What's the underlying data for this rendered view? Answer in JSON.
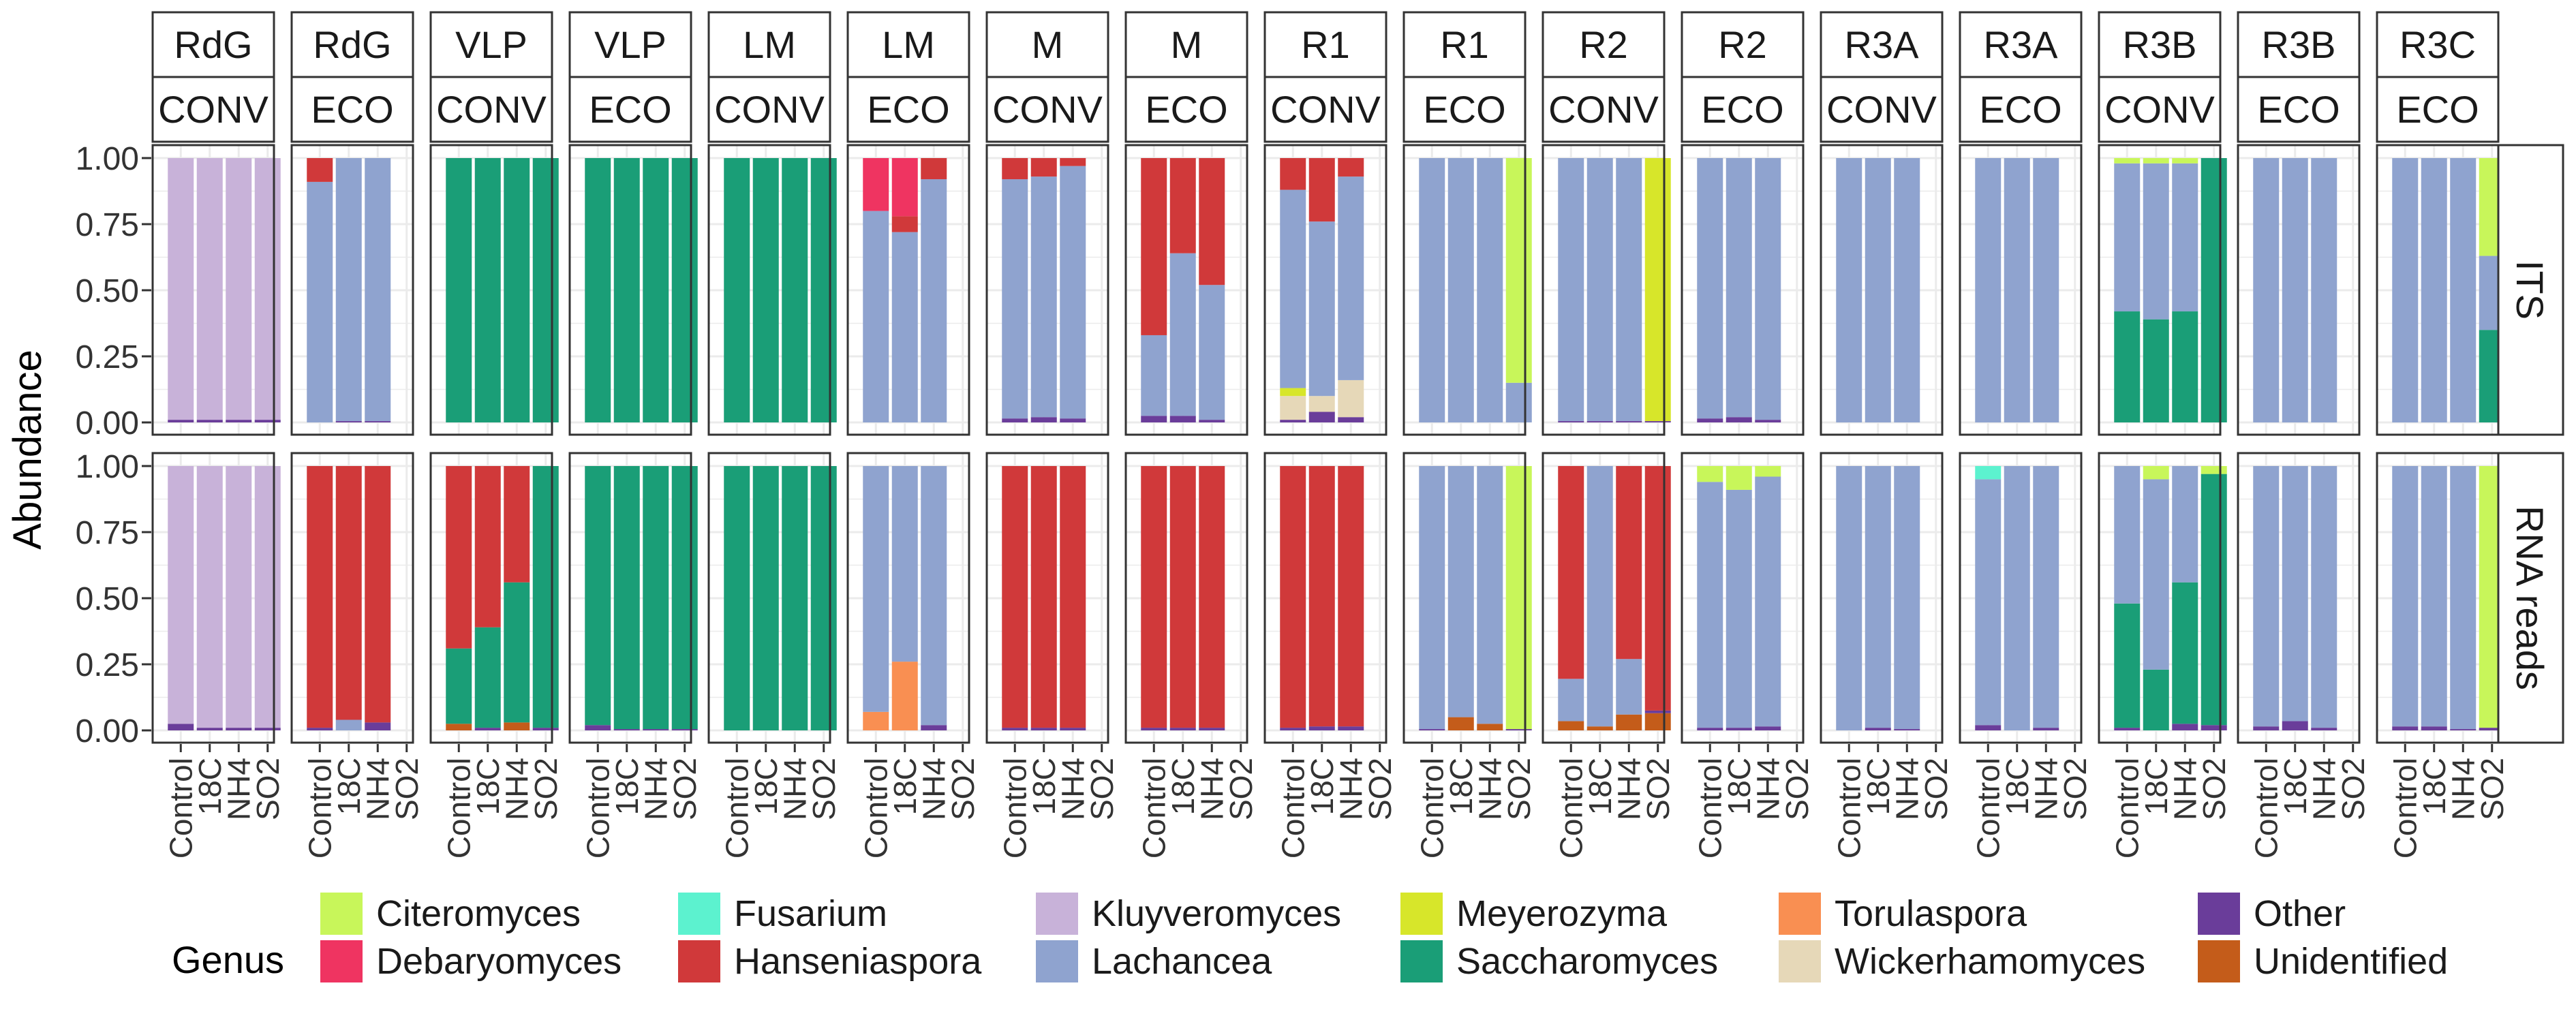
{
  "chart_data": {
    "type": "bar",
    "stacked": true,
    "ylabel": "Abundance",
    "yticks": [
      "0.00",
      "0.25",
      "0.50",
      "0.75",
      "1.00"
    ],
    "ylim": [
      0,
      1
    ],
    "categories": [
      "Control",
      "18C",
      "NH4",
      "SO2"
    ],
    "row_labels": [
      "ITS",
      "RNA reads"
    ],
    "legend_title": "Genus",
    "legend_position": "bottom",
    "genera": [
      {
        "name": "Citeromyces",
        "color": "#c8f65a"
      },
      {
        "name": "Debaryomyces",
        "color": "#ef3461"
      },
      {
        "name": "Fusarium",
        "color": "#5cf2cf"
      },
      {
        "name": "Hanseniaspora",
        "color": "#d0393a"
      },
      {
        "name": "Kluyveromyces",
        "color": "#c8b2d9"
      },
      {
        "name": "Lachancea",
        "color": "#8fa3cf"
      },
      {
        "name": "Meyerozyma",
        "color": "#d7e62a"
      },
      {
        "name": "Saccharomyces",
        "color": "#1a9e77"
      },
      {
        "name": "Torulaspora",
        "color": "#f98f52"
      },
      {
        "name": "Wickerhamomyces",
        "color": "#e6d8b8"
      },
      {
        "name": "Other",
        "color": "#6a3d9a"
      },
      {
        "name": "Unidentified",
        "color": "#c45c1a"
      }
    ],
    "panels": [
      {
        "top": "RdG",
        "bottom": "CONV",
        "ITS": [
          {
            "Other": 0.01,
            "Kluyveromyces": 0.99
          },
          {
            "Other": 0.01,
            "Kluyveromyces": 0.99
          },
          {
            "Other": 0.01,
            "Kluyveromyces": 0.99
          },
          {
            "Other": 0.01,
            "Kluyveromyces": 0.99
          }
        ],
        "RNA": [
          {
            "Other": 0.025,
            "Kluyveromyces": 0.975
          },
          {
            "Other": 0.01,
            "Kluyveromyces": 0.99
          },
          {
            "Other": 0.01,
            "Kluyveromyces": 0.99
          },
          {
            "Other": 0.01,
            "Kluyveromyces": 0.99
          }
        ]
      },
      {
        "top": "RdG",
        "bottom": "ECO",
        "ITS": [
          {
            "Lachancea": 0.91,
            "Hanseniaspora": 0.09
          },
          {
            "Other": 0.005,
            "Lachancea": 0.995
          },
          {
            "Other": 0.005,
            "Lachancea": 0.995
          },
          null
        ],
        "RNA": [
          {
            "Other": 0.01,
            "Hanseniaspora": 0.99
          },
          {
            "Lachancea": 0.04,
            "Hanseniaspora": 0.96
          },
          {
            "Other": 0.03,
            "Hanseniaspora": 0.97
          },
          null
        ]
      },
      {
        "top": "VLP",
        "bottom": "CONV",
        "ITS": [
          {
            "Saccharomyces": 1
          },
          {
            "Saccharomyces": 1
          },
          {
            "Saccharomyces": 1
          },
          {
            "Saccharomyces": 1
          }
        ],
        "RNA": [
          {
            "Unidentified": 0.025,
            "Saccharomyces": 0.285,
            "Hanseniaspora": 0.69
          },
          {
            "Other": 0.01,
            "Saccharomyces": 0.38,
            "Hanseniaspora": 0.61
          },
          {
            "Unidentified": 0.03,
            "Saccharomyces": 0.53,
            "Hanseniaspora": 0.44
          },
          {
            "Other": 0.01,
            "Saccharomyces": 0.99
          }
        ]
      },
      {
        "top": "VLP",
        "bottom": "ECO",
        "ITS": [
          {
            "Saccharomyces": 1
          },
          {
            "Saccharomyces": 1
          },
          {
            "Saccharomyces": 1
          },
          {
            "Saccharomyces": 1
          }
        ],
        "RNA": [
          {
            "Other": 0.02,
            "Saccharomyces": 0.98
          },
          {
            "Other": 0.005,
            "Saccharomyces": 0.995
          },
          {
            "Other": 0.005,
            "Saccharomyces": 0.995
          },
          {
            "Other": 0.005,
            "Saccharomyces": 0.995
          }
        ]
      },
      {
        "top": "LM",
        "bottom": "CONV",
        "ITS": [
          {
            "Saccharomyces": 1
          },
          {
            "Saccharomyces": 1
          },
          {
            "Saccharomyces": 1
          },
          {
            "Saccharomyces": 1
          }
        ],
        "RNA": [
          {
            "Saccharomyces": 1
          },
          {
            "Saccharomyces": 1
          },
          {
            "Saccharomyces": 1
          },
          {
            "Saccharomyces": 1
          }
        ]
      },
      {
        "top": "LM",
        "bottom": "ECO",
        "ITS": [
          {
            "Lachancea": 0.8,
            "Debaryomyces": 0.2
          },
          {
            "Lachancea": 0.72,
            "Debaryomyces": 0.22,
            "Hanseniaspora": 0.06
          },
          {
            "Lachancea": 0.92,
            "Hanseniaspora": 0.08
          },
          null
        ],
        "RNA": [
          {
            "Torulaspora": 0.07,
            "Lachancea": 0.93
          },
          {
            "Torulaspora": 0.26,
            "Lachancea": 0.74
          },
          {
            "Other": 0.02,
            "Lachancea": 0.98
          },
          null
        ]
      },
      {
        "top": "M",
        "bottom": "CONV",
        "ITS": [
          {
            "Other": 0.015,
            "Lachancea": 0.905,
            "Hanseniaspora": 0.08
          },
          {
            "Other": 0.02,
            "Lachancea": 0.91,
            "Hanseniaspora": 0.07
          },
          {
            "Other": 0.015,
            "Lachancea": 0.955,
            "Hanseniaspora": 0.03
          },
          null
        ],
        "RNA": [
          {
            "Other": 0.01,
            "Hanseniaspora": 0.99
          },
          {
            "Other": 0.01,
            "Hanseniaspora": 0.99
          },
          {
            "Other": 0.01,
            "Hanseniaspora": 0.99
          },
          null
        ]
      },
      {
        "top": "M",
        "bottom": "ECO",
        "ITS": [
          {
            "Other": 0.025,
            "Lachancea": 0.305,
            "Hanseniaspora": 0.67
          },
          {
            "Other": 0.025,
            "Lachancea": 0.615,
            "Hanseniaspora": 0.36
          },
          {
            "Other": 0.01,
            "Lachancea": 0.51,
            "Hanseniaspora": 0.48
          },
          null
        ],
        "RNA": [
          {
            "Other": 0.01,
            "Hanseniaspora": 0.99
          },
          {
            "Other": 0.01,
            "Hanseniaspora": 0.99
          },
          {
            "Other": 0.01,
            "Hanseniaspora": 0.99
          },
          null
        ]
      },
      {
        "top": "R1",
        "bottom": "CONV",
        "ITS": [
          {
            "Other": 0.01,
            "Wickerhamomyces": 0.09,
            "Lachancea": 0.75,
            "Hanseniaspora": 0.12,
            "Meyerozyma": 0.03
          },
          {
            "Other": 0.04,
            "Wickerhamomyces": 0.06,
            "Lachancea": 0.66,
            "Hanseniaspora": 0.24
          },
          {
            "Other": 0.02,
            "Wickerhamomyces": 0.14,
            "Lachancea": 0.77,
            "Hanseniaspora": 0.07
          },
          null
        ],
        "RNA": [
          {
            "Other": 0.01,
            "Hanseniaspora": 0.99
          },
          {
            "Other": 0.015,
            "Hanseniaspora": 0.985
          },
          {
            "Other": 0.015,
            "Hanseniaspora": 0.985
          },
          null
        ]
      },
      {
        "top": "R1",
        "bottom": "ECO",
        "ITS": [
          {
            "Lachancea": 1
          },
          {
            "Lachancea": 1
          },
          {
            "Lachancea": 1
          },
          {
            "Lachancea": 0.15,
            "Citeromyces": 0.85
          }
        ],
        "RNA": [
          {
            "Other": 0.005,
            "Lachancea": 0.995
          },
          {
            "Unidentified": 0.05,
            "Lachancea": 0.95
          },
          {
            "Unidentified": 0.025,
            "Lachancea": 0.975
          },
          {
            "Other": 0.005,
            "Citeromyces": 0.995
          }
        ]
      },
      {
        "top": "R2",
        "bottom": "CONV",
        "ITS": [
          {
            "Other": 0.005,
            "Lachancea": 0.995
          },
          {
            "Other": 0.005,
            "Lachancea": 0.995
          },
          {
            "Other": 0.005,
            "Lachancea": 0.995
          },
          {
            "Other": 0.005,
            "Meyerozyma": 0.995
          }
        ],
        "RNA": [
          {
            "Unidentified": 0.035,
            "Lachancea": 0.16,
            "Hanseniaspora": 0.805
          },
          {
            "Unidentified": 0.015,
            "Lachancea": 0.985
          },
          {
            "Unidentified": 0.06,
            "Lachancea": 0.21,
            "Hanseniaspora": 0.73
          },
          {
            "Unidentified": 0.065,
            "Other": 0.01,
            "Hanseniaspora": 0.925
          }
        ]
      },
      {
        "top": "R2",
        "bottom": "ECO",
        "ITS": [
          {
            "Other": 0.015,
            "Lachancea": 0.985
          },
          {
            "Other": 0.02,
            "Lachancea": 0.98
          },
          {
            "Other": 0.01,
            "Lachancea": 0.99
          },
          null
        ],
        "RNA": [
          {
            "Other": 0.01,
            "Lachancea": 0.93,
            "Citeromyces": 0.06
          },
          {
            "Other": 0.01,
            "Lachancea": 0.9,
            "Citeromyces": 0.09
          },
          {
            "Other": 0.015,
            "Lachancea": 0.945,
            "Citeromyces": 0.04
          },
          null
        ]
      },
      {
        "top": "R3A",
        "bottom": "CONV",
        "ITS": [
          {
            "Lachancea": 1
          },
          {
            "Lachancea": 1
          },
          {
            "Lachancea": 1
          },
          null
        ],
        "RNA": [
          {
            "Lachancea": 1
          },
          {
            "Other": 0.01,
            "Lachancea": 0.99
          },
          {
            "Other": 0.005,
            "Lachancea": 0.995
          },
          null
        ]
      },
      {
        "top": "R3A",
        "bottom": "ECO",
        "ITS": [
          {
            "Lachancea": 1
          },
          {
            "Lachancea": 1
          },
          {
            "Lachancea": 1
          },
          null
        ],
        "RNA": [
          {
            "Other": 0.02,
            "Lachancea": 0.93,
            "Fusarium": 0.05
          },
          {
            "Lachancea": 1
          },
          {
            "Other": 0.01,
            "Lachancea": 0.99
          },
          null
        ]
      },
      {
        "top": "R3B",
        "bottom": "CONV",
        "ITS": [
          {
            "Saccharomyces": 0.42,
            "Lachancea": 0.56,
            "Citeromyces": 0.02
          },
          {
            "Saccharomyces": 0.39,
            "Lachancea": 0.59,
            "Citeromyces": 0.02
          },
          {
            "Saccharomyces": 0.42,
            "Lachancea": 0.56,
            "Citeromyces": 0.02
          },
          {
            "Saccharomyces": 1
          }
        ],
        "RNA": [
          {
            "Other": 0.01,
            "Saccharomyces": 0.47,
            "Lachancea": 0.52
          },
          {
            "Saccharomyces": 0.23,
            "Lachancea": 0.72,
            "Citeromyces": 0.05
          },
          {
            "Other": 0.025,
            "Saccharomyces": 0.535,
            "Lachancea": 0.44
          },
          {
            "Other": 0.02,
            "Saccharomyces": 0.95,
            "Citeromyces": 0.03
          }
        ]
      },
      {
        "top": "R3B",
        "bottom": "ECO",
        "ITS": [
          {
            "Lachancea": 1
          },
          {
            "Lachancea": 1
          },
          {
            "Lachancea": 1
          },
          null
        ],
        "RNA": [
          {
            "Other": 0.015,
            "Lachancea": 0.985
          },
          {
            "Other": 0.035,
            "Lachancea": 0.965
          },
          {
            "Other": 0.01,
            "Lachancea": 0.99
          },
          null
        ]
      },
      {
        "top": "R3C",
        "bottom": "ECO",
        "ITS": [
          {
            "Lachancea": 1
          },
          {
            "Lachancea": 1
          },
          {
            "Lachancea": 1
          },
          {
            "Saccharomyces": 0.35,
            "Lachancea": 0.28,
            "Citeromyces": 0.37
          }
        ],
        "RNA": [
          {
            "Other": 0.015,
            "Lachancea": 0.985
          },
          {
            "Other": 0.015,
            "Lachancea": 0.985
          },
          {
            "Other": 0.005,
            "Lachancea": 0.995
          },
          {
            "Other": 0.01,
            "Citeromyces": 0.99
          }
        ]
      }
    ]
  }
}
